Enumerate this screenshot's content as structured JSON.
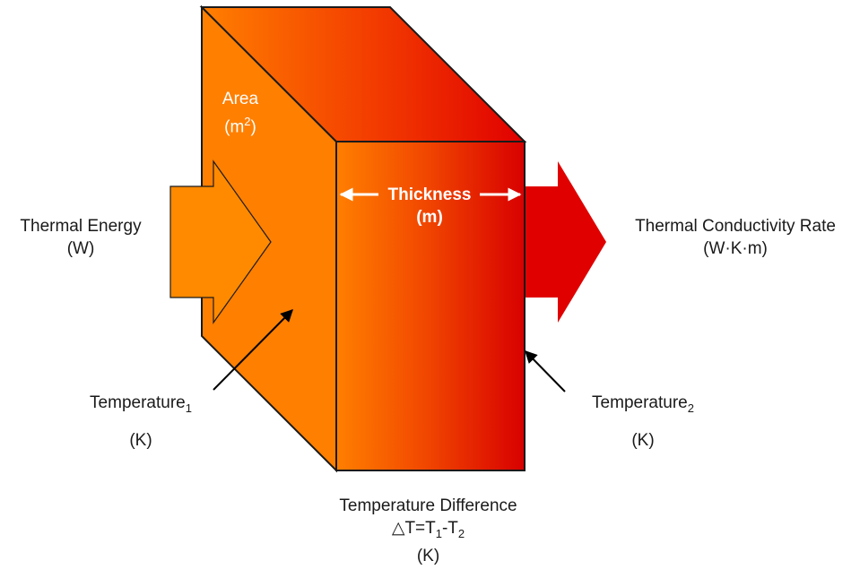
{
  "colors": {
    "orange": "#ff7f00",
    "orange_dark": "#f26b00",
    "red": "#e00000",
    "red_deep": "#d10000",
    "outline": "#1a1a1a",
    "label_white": "#ffffff"
  },
  "labels": {
    "area": {
      "line1": "Area",
      "line2_base": "(m",
      "line2_sup": "2",
      "line2_end": ")"
    },
    "thickness": {
      "line1": "Thickness",
      "line2": "(m)"
    },
    "thermal_energy": {
      "line1": "Thermal Energy",
      "line2": "(W)"
    },
    "thermal_conductivity_rate": {
      "line1": "Thermal Conductivity Rate",
      "line2": "(W·K·m)"
    },
    "temperature_1": {
      "base": "Temperature",
      "sub": "1",
      "unit": "(K)"
    },
    "temperature_2": {
      "base": "Temperature",
      "sub": "2",
      "unit": "(K)"
    },
    "temperature_difference": {
      "line1": "Temperature Difference",
      "delta": "△T=T",
      "sub1": "1",
      "minus": "-T",
      "sub2": "2",
      "unit": "(K)"
    }
  },
  "icons": {
    "input_arrow": "thick-arrow-right-icon",
    "output_arrow": "thick-arrow-right-icon",
    "pointer_arrows": "pointer-arrow-icon",
    "dimension_arrow": "double-headed-arrow-icon"
  }
}
